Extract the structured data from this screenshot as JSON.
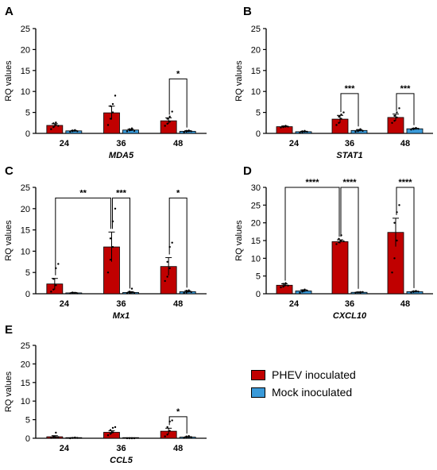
{
  "colors": {
    "phev": "#c00000",
    "mock": "#3a9ad9",
    "axis": "#000000"
  },
  "legend": {
    "items": [
      {
        "label": "PHEV inoculated",
        "color": "#c00000"
      },
      {
        "label": "Mock inoculated",
        "color": "#3a9ad9"
      }
    ]
  },
  "chart_data": [
    {
      "type": "bar",
      "panel": "A",
      "xlabel": "MDA5",
      "ylabel": "RQ values",
      "ylim": [
        0,
        25
      ],
      "yticks": [
        0,
        5,
        10,
        15,
        20,
        25
      ],
      "categories": [
        "24",
        "36",
        "48"
      ],
      "series": [
        {
          "name": "PHEV inoculated",
          "values": [
            1.9,
            4.9,
            3.0
          ],
          "errors": [
            0.4,
            1.6,
            0.7
          ],
          "points": [
            [
              1.0,
              1.5,
              2.0,
              2.4,
              2.6,
              1.8
            ],
            [
              2.0,
              3.5,
              5.0,
              6.5,
              7.0,
              9.0
            ],
            [
              1.8,
              2.3,
              2.8,
              3.5,
              4.0,
              5.2
            ]
          ]
        },
        {
          "name": "Mock inoculated",
          "values": [
            0.6,
            0.8,
            0.5
          ],
          "errors": [
            0.1,
            0.2,
            0.15
          ],
          "points": [
            [
              0.4,
              0.5,
              0.6,
              0.7,
              0.8,
              0.5
            ],
            [
              0.5,
              0.7,
              0.8,
              1.0,
              1.2,
              0.6
            ],
            [
              0.3,
              0.4,
              0.5,
              0.6,
              0.7,
              0.5
            ]
          ]
        }
      ],
      "significance": [
        {
          "from": [
            2,
            0
          ],
          "to": [
            2,
            1
          ],
          "y": 13,
          "label": "*"
        }
      ]
    },
    {
      "type": "bar",
      "panel": "B",
      "xlabel": "STAT1",
      "ylabel": "RQ values",
      "ylim": [
        0,
        25
      ],
      "yticks": [
        0,
        5,
        10,
        15,
        20,
        25
      ],
      "categories": [
        "24",
        "36",
        "48"
      ],
      "series": [
        {
          "name": "PHEV inoculated",
          "values": [
            1.6,
            3.4,
            3.8
          ],
          "errors": [
            0.15,
            0.9,
            0.8
          ],
          "points": [
            [
              1.4,
              1.5,
              1.6,
              1.7,
              1.8,
              1.6
            ],
            [
              2.0,
              2.5,
              3.5,
              4.0,
              4.5,
              5.0
            ],
            [
              2.5,
              3.0,
              3.8,
              4.2,
              5.0,
              6.0
            ]
          ]
        },
        {
          "name": "Mock inoculated",
          "values": [
            0.4,
            0.7,
            1.1
          ],
          "errors": [
            0.1,
            0.2,
            0.1
          ],
          "points": [
            [
              0.2,
              0.3,
              0.4,
              0.5,
              0.6,
              0.4
            ],
            [
              0.4,
              0.5,
              0.7,
              0.8,
              1.0,
              0.6
            ],
            [
              0.9,
              1.0,
              1.1,
              1.2,
              1.3,
              1.1
            ]
          ]
        }
      ],
      "significance": [
        {
          "from": [
            1,
            0
          ],
          "to": [
            1,
            1
          ],
          "y": 9.5,
          "label": "***"
        },
        {
          "from": [
            2,
            0
          ],
          "to": [
            2,
            1
          ],
          "y": 9.5,
          "label": "***"
        }
      ]
    },
    {
      "type": "bar",
      "panel": "C",
      "xlabel": "Mx1",
      "ylabel": "RQ values",
      "ylim": [
        0,
        25
      ],
      "yticks": [
        0,
        5,
        10,
        15,
        20,
        25
      ],
      "categories": [
        "24",
        "36",
        "48"
      ],
      "series": [
        {
          "name": "PHEV inoculated",
          "values": [
            2.3,
            11.0,
            6.4
          ],
          "errors": [
            1.3,
            3.5,
            2.1
          ],
          "points": [
            [
              0.5,
              1.0,
              2.0,
              3.5,
              6.0,
              7.0
            ],
            [
              5.0,
              8.0,
              11.0,
              13.0,
              17.0,
              20.0
            ],
            [
              3.0,
              4.0,
              6.0,
              7.5,
              11.0,
              12.0
            ]
          ]
        },
        {
          "name": "Mock inoculated",
          "values": [
            0.2,
            0.3,
            0.5
          ],
          "errors": [
            0.1,
            0.2,
            0.2
          ],
          "points": [
            [
              0.1,
              0.2,
              0.2,
              0.3,
              0.2,
              0.1
            ],
            [
              0.1,
              0.2,
              0.3,
              0.5,
              1.2,
              0.2
            ],
            [
              0.2,
              0.3,
              0.5,
              0.7,
              0.8,
              0.4
            ]
          ]
        }
      ],
      "significance": [
        {
          "from": [
            0,
            0
          ],
          "to": [
            1,
            0
          ],
          "y": 22.5,
          "label": "**"
        },
        {
          "from": [
            1,
            0
          ],
          "to": [
            1,
            1
          ],
          "y": 22.5,
          "label": "***"
        },
        {
          "from": [
            2,
            0
          ],
          "to": [
            2,
            1
          ],
          "y": 22.5,
          "label": "*"
        }
      ]
    },
    {
      "type": "bar",
      "panel": "D",
      "xlabel": "CXCL10",
      "ylabel": "RQ values",
      "ylim": [
        0,
        30
      ],
      "yticks": [
        0,
        5,
        10,
        15,
        20,
        25,
        30
      ],
      "categories": [
        "24",
        "36",
        "48"
      ],
      "series": [
        {
          "name": "PHEV inoculated",
          "values": [
            2.4,
            14.7,
            17.3
          ],
          "errors": [
            0.4,
            0.5,
            4.0
          ],
          "points": [
            [
              1.8,
              2.0,
              2.4,
              2.8,
              3.0,
              2.3
            ],
            [
              14.0,
              14.5,
              15.0,
              15.5,
              16.5,
              14.8
            ],
            [
              6.0,
              10.0,
              15.0,
              20.0,
              23.0,
              25.0
            ]
          ]
        },
        {
          "name": "Mock inoculated",
          "values": [
            0.8,
            0.4,
            0.6
          ],
          "errors": [
            0.3,
            0.1,
            0.1
          ],
          "points": [
            [
              0.3,
              0.6,
              0.8,
              1.0,
              1.2,
              0.9
            ],
            [
              0.3,
              0.4,
              0.5,
              0.4,
              0.3,
              0.5
            ],
            [
              0.4,
              0.5,
              0.6,
              0.7,
              0.8,
              0.6
            ]
          ]
        }
      ],
      "significance": [
        {
          "from": [
            0,
            0
          ],
          "to": [
            1,
            0
          ],
          "y": 30,
          "label": "****"
        },
        {
          "from": [
            1,
            0
          ],
          "to": [
            1,
            1
          ],
          "y": 30,
          "label": "****"
        },
        {
          "from": [
            2,
            0
          ],
          "to": [
            2,
            1
          ],
          "y": 30,
          "label": "****"
        }
      ]
    },
    {
      "type": "bar",
      "panel": "E",
      "xlabel": "CCL5",
      "ylabel": "RQ values",
      "ylim": [
        0,
        25
      ],
      "yticks": [
        0,
        5,
        10,
        15,
        20,
        25
      ],
      "categories": [
        "24",
        "36",
        "48"
      ],
      "series": [
        {
          "name": "PHEV inoculated",
          "values": [
            0.4,
            1.6,
            1.9
          ],
          "errors": [
            0.3,
            0.4,
            0.8
          ],
          "points": [
            [
              0.1,
              0.2,
              0.3,
              0.5,
              1.5,
              0.3
            ],
            [
              0.8,
              1.2,
              1.6,
              2.2,
              2.8,
              3.0
            ],
            [
              0.5,
              1.0,
              2.0,
              3.0,
              4.5,
              4.8
            ]
          ]
        },
        {
          "name": "Mock inoculated",
          "values": [
            0.1,
            0.0,
            0.3
          ],
          "errors": [
            0.05,
            0.0,
            0.1
          ],
          "points": [
            [
              0.0,
              0.1,
              0.1,
              0.1,
              0.2,
              0.1
            ],
            [
              0.0,
              0.0,
              0.0,
              0.0,
              0.0,
              0.0
            ],
            [
              0.1,
              0.2,
              0.3,
              0.5,
              0.6,
              0.3
            ]
          ]
        }
      ],
      "significance": [
        {
          "from": [
            2,
            0
          ],
          "to": [
            2,
            1
          ],
          "y": 5.8,
          "label": "*"
        }
      ]
    }
  ]
}
